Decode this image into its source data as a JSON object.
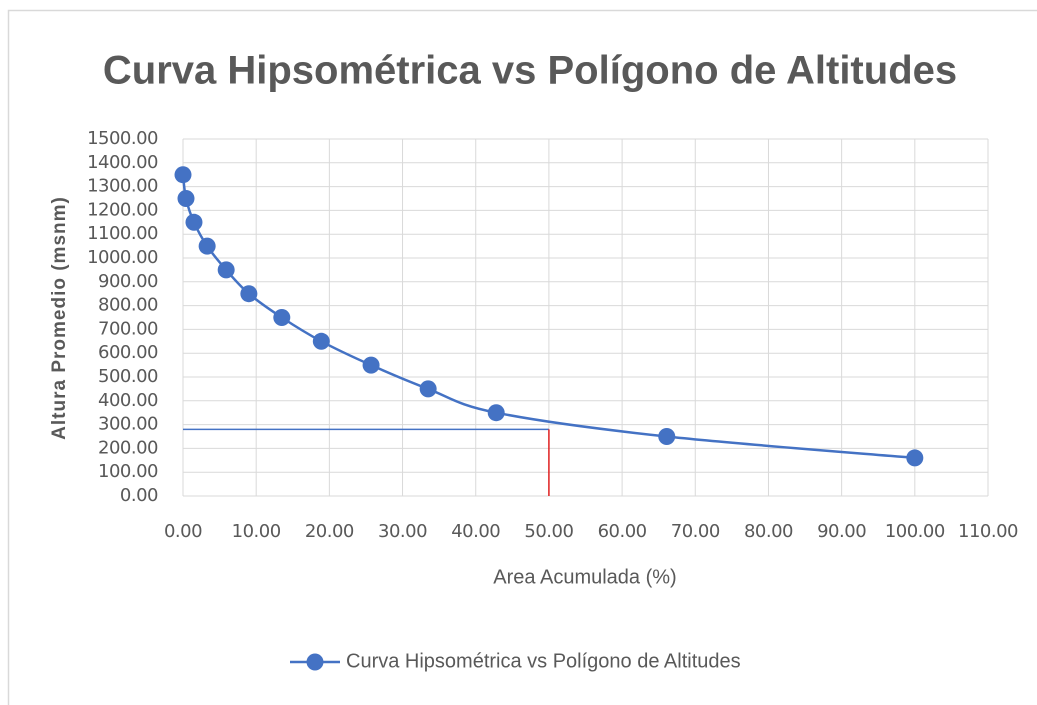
{
  "chart_data": {
    "type": "line",
    "title": "Curva Hipsométrica vs Polígono de Altitudes",
    "xlabel": "Area Acumulada (%)",
    "ylabel": "Altura Promedio (msnm)",
    "x": [
      0,
      0.41,
      1.5,
      3.3,
      5.9,
      9.0,
      13.5,
      18.9,
      25.7,
      33.5,
      42.8,
      66.1,
      100
    ],
    "series": [
      {
        "name": "Curva Hipsométrica vs Polígono de Altitudes",
        "color": "#4472c4",
        "values": [
          1350,
          1250,
          1150,
          1050,
          950,
          850,
          750,
          650,
          550,
          450,
          350,
          250,
          160
        ]
      }
    ],
    "guide": {
      "x": 50,
      "y": 280,
      "hcolor": "#4472c4",
      "vcolor": "#e02020"
    },
    "xlim": [
      0,
      110
    ],
    "xticks": [
      {
        "value": 0,
        "label": "0.00"
      },
      {
        "value": 10,
        "label": "10.00"
      },
      {
        "value": 20,
        "label": "20.00"
      },
      {
        "value": 30,
        "label": "30.00"
      },
      {
        "value": 40,
        "label": "40.00"
      },
      {
        "value": 50,
        "label": "50.00"
      },
      {
        "value": 60,
        "label": "60.00"
      },
      {
        "value": 70,
        "label": "70.00"
      },
      {
        "value": 80,
        "label": "80.00"
      },
      {
        "value": 90,
        "label": "90.00"
      },
      {
        "value": 100,
        "label": "100.00"
      },
      {
        "value": 110,
        "label": "110.00"
      }
    ],
    "ylim": [
      0,
      1500
    ],
    "yticks": [
      {
        "value": 0,
        "label": "0.00"
      },
      {
        "value": 100,
        "label": "100.00"
      },
      {
        "value": 200,
        "label": "200.00"
      },
      {
        "value": 300,
        "label": "300.00"
      },
      {
        "value": 400,
        "label": "400.00"
      },
      {
        "value": 500,
        "label": "500.00"
      },
      {
        "value": 600,
        "label": "600.00"
      },
      {
        "value": 700,
        "label": "700.00"
      },
      {
        "value": 800,
        "label": "800.00"
      },
      {
        "value": 900,
        "label": "900.00"
      },
      {
        "value": 1000,
        "label": "1000.00"
      },
      {
        "value": 1100,
        "label": "1100.00"
      },
      {
        "value": 1200,
        "label": "1200.00"
      },
      {
        "value": 1300,
        "label": "1300.00"
      },
      {
        "value": 1400,
        "label": "1400.00"
      },
      {
        "value": 1500,
        "label": "1500.00"
      }
    ],
    "grid": true,
    "legend": "bottom"
  }
}
